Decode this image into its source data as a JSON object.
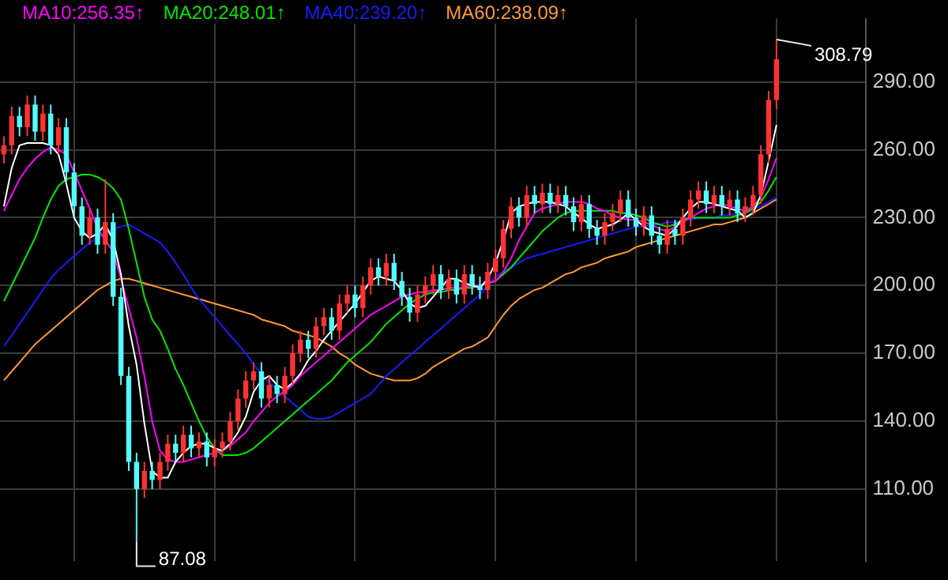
{
  "chart_data": {
    "type": "candlestick",
    "categories": [
      null,
      null,
      null,
      null,
      null,
      null,
      null,
      null,
      null,
      null,
      null,
      null,
      null,
      null,
      null,
      null,
      null,
      null,
      null,
      null,
      null,
      null,
      null,
      null,
      null,
      null,
      null,
      null,
      null,
      null,
      null,
      null,
      null,
      null,
      null,
      null,
      null,
      null,
      null,
      null,
      null,
      null,
      null,
      null,
      null,
      null,
      null,
      null,
      null,
      null,
      null,
      null,
      null,
      null,
      null,
      null,
      null,
      null,
      null,
      null,
      null,
      null,
      null,
      null,
      null,
      null,
      null,
      null,
      null,
      null,
      null,
      null,
      null,
      null,
      null,
      null,
      null,
      null,
      null,
      null,
      null,
      null,
      null,
      null,
      null,
      null,
      null,
      null,
      null,
      null,
      null,
      null,
      null,
      null,
      null,
      null,
      null,
      null,
      null,
      null
    ],
    "ohlc": [
      [
        258,
        266,
        254,
        262
      ],
      [
        262,
        279,
        258,
        275
      ],
      [
        275,
        279,
        266,
        270
      ],
      [
        270,
        284,
        266,
        280
      ],
      [
        280,
        284,
        264,
        268
      ],
      [
        268,
        280,
        264,
        276
      ],
      [
        276,
        280,
        258,
        262
      ],
      [
        262,
        274,
        258,
        270
      ],
      [
        270,
        274,
        246,
        250
      ],
      [
        250,
        254,
        231,
        235
      ],
      [
        235,
        239,
        218,
        222
      ],
      [
        222,
        234,
        218,
        230
      ],
      [
        230,
        234,
        214,
        218
      ],
      [
        218,
        247,
        214,
        228
      ],
      [
        228,
        232,
        191,
        195
      ],
      [
        195,
        199,
        156,
        160
      ],
      [
        160,
        164,
        118,
        122
      ],
      [
        122,
        126,
        87.08,
        110
      ],
      [
        110,
        122,
        106,
        118
      ],
      [
        118,
        122,
        110,
        114
      ],
      [
        114,
        126,
        110,
        122
      ],
      [
        122,
        134,
        118,
        130
      ],
      [
        130,
        134,
        122,
        126
      ],
      [
        126,
        138,
        122,
        134
      ],
      [
        134,
        138,
        124,
        128
      ],
      [
        128,
        135,
        124,
        131
      ],
      [
        131,
        135,
        120,
        124
      ],
      [
        124,
        132,
        120,
        128
      ],
      [
        128,
        135,
        124,
        131
      ],
      [
        131,
        144,
        127,
        140
      ],
      [
        140,
        154,
        136,
        150
      ],
      [
        150,
        162,
        146,
        158
      ],
      [
        158,
        166,
        154,
        162
      ],
      [
        162,
        166,
        146,
        150
      ],
      [
        150,
        160,
        146,
        156
      ],
      [
        156,
        160,
        148,
        152
      ],
      [
        152,
        164,
        148,
        160
      ],
      [
        160,
        174,
        156,
        170
      ],
      [
        170,
        180,
        166,
        176
      ],
      [
        176,
        180,
        168,
        172
      ],
      [
        172,
        186,
        168,
        182
      ],
      [
        182,
        190,
        178,
        186
      ],
      [
        186,
        190,
        176,
        180
      ],
      [
        180,
        196,
        176,
        192
      ],
      [
        192,
        200,
        188,
        196
      ],
      [
        196,
        200,
        186,
        190
      ],
      [
        190,
        204,
        186,
        200
      ],
      [
        200,
        212,
        196,
        208
      ],
      [
        208,
        212,
        200,
        204
      ],
      [
        204,
        214,
        200,
        210
      ],
      [
        210,
        214,
        198,
        202
      ],
      [
        202,
        206,
        191,
        195
      ],
      [
        195,
        199,
        184,
        188
      ],
      [
        188,
        200,
        184,
        196
      ],
      [
        196,
        204,
        192,
        200
      ],
      [
        200,
        209,
        196,
        205
      ],
      [
        205,
        209,
        194,
        198
      ],
      [
        198,
        207,
        194,
        203
      ],
      [
        203,
        207,
        192,
        196
      ],
      [
        196,
        209,
        192,
        205
      ],
      [
        205,
        209,
        196,
        200
      ],
      [
        200,
        204,
        194,
        198
      ],
      [
        198,
        210,
        194,
        206
      ],
      [
        206,
        216,
        202,
        212
      ],
      [
        212,
        229,
        208,
        225
      ],
      [
        225,
        239,
        221,
        235
      ],
      [
        235,
        239,
        226,
        230
      ],
      [
        230,
        244,
        226,
        240
      ],
      [
        240,
        244,
        232,
        236
      ],
      [
        236,
        245,
        232,
        241
      ],
      [
        241,
        245,
        232,
        236
      ],
      [
        236,
        244,
        232,
        240
      ],
      [
        240,
        244,
        231,
        235
      ],
      [
        235,
        239,
        224,
        228
      ],
      [
        228,
        240,
        224,
        236
      ],
      [
        236,
        240,
        221,
        225
      ],
      [
        225,
        229,
        218,
        222
      ],
      [
        222,
        232,
        218,
        228
      ],
      [
        228,
        236,
        224,
        232
      ],
      [
        232,
        242,
        228,
        238
      ],
      [
        238,
        242,
        226,
        230
      ],
      [
        230,
        234,
        222,
        226
      ],
      [
        226,
        235,
        222,
        231
      ],
      [
        231,
        235,
        218,
        222
      ],
      [
        222,
        226,
        214,
        218
      ],
      [
        218,
        229,
        214,
        225
      ],
      [
        225,
        229,
        218,
        222
      ],
      [
        222,
        234,
        218,
        230
      ],
      [
        230,
        242,
        226,
        238
      ],
      [
        238,
        246,
        234,
        242
      ],
      [
        242,
        246,
        232,
        236
      ],
      [
        236,
        244,
        232,
        240
      ],
      [
        240,
        244,
        231,
        235
      ],
      [
        235,
        242,
        231,
        238
      ],
      [
        238,
        242,
        228,
        232
      ],
      [
        232,
        239,
        228,
        235
      ],
      [
        235,
        244,
        231,
        240
      ],
      [
        240,
        262,
        236,
        258
      ],
      [
        258,
        286,
        254,
        282
      ],
      [
        282,
        308.79,
        278,
        300
      ]
    ],
    "series": [
      {
        "type": "line",
        "color": "#ffffff",
        "values": [
          235,
          252,
          262,
          263,
          263,
          263,
          262,
          258,
          245,
          230,
          224,
          221,
          223,
          227,
          220,
          205,
          182,
          165,
          139,
          118,
          115,
          115,
          122,
          126,
          129,
          130,
          130,
          128,
          127,
          130,
          135,
          142,
          153,
          158,
          160,
          156,
          154,
          157,
          161,
          167,
          171,
          176,
          180,
          184,
          188,
          192,
          197,
          202,
          204,
          203,
          202,
          198,
          192,
          190,
          191,
          195,
          199,
          203,
          203,
          201,
          200,
          199,
          203,
          210,
          220,
          232,
          235,
          236,
          237,
          237,
          237,
          236,
          235,
          232,
          230,
          227,
          225,
          226,
          227,
          229,
          232,
          229,
          226,
          224,
          223,
          222,
          225,
          230,
          234,
          237,
          237,
          236,
          235,
          234,
          233,
          230,
          232,
          240,
          255,
          271
        ]
      },
      {
        "type": "line",
        "name": "MA10:256.35↑",
        "color": "#ff00ff",
        "values": [
          233,
          240,
          247,
          252,
          256,
          259,
          261,
          260,
          258,
          250,
          242,
          234,
          225,
          220,
          215,
          203,
          190,
          177,
          160,
          140,
          127,
          123,
          122,
          122,
          123,
          124,
          125,
          126,
          127,
          129,
          132,
          135,
          140,
          144,
          148,
          151,
          153,
          156,
          160,
          163,
          166,
          169,
          172,
          175,
          178,
          181,
          184,
          187,
          189,
          191,
          193,
          195,
          196,
          197,
          197,
          198,
          198,
          199,
          199,
          199,
          200,
          200,
          201,
          202,
          206,
          212,
          220,
          226,
          232,
          234,
          235,
          236,
          237,
          237,
          237,
          236,
          234,
          233,
          231,
          230,
          229,
          229,
          228,
          227,
          225,
          224,
          226,
          228,
          230,
          232,
          234,
          235,
          236,
          235,
          234,
          233,
          235,
          239,
          247,
          256.35
        ]
      },
      {
        "type": "line",
        "name": "MA20:248.01↑",
        "color": "#00e600",
        "values": [
          193,
          200,
          207,
          214,
          221,
          230,
          238,
          244,
          247,
          248,
          249,
          249,
          248,
          246,
          243,
          238,
          225,
          210,
          195,
          185,
          180,
          172,
          163,
          156,
          148,
          140,
          133,
          128,
          125,
          125,
          125,
          126,
          128,
          131,
          134,
          137,
          140,
          143,
          146,
          149,
          152,
          155,
          158,
          162,
          166,
          169,
          172,
          175,
          179,
          183,
          186,
          189,
          192,
          194,
          196,
          197,
          197,
          198,
          198,
          199,
          199,
          200,
          201,
          202,
          205,
          208,
          212,
          216,
          220,
          224,
          227,
          230,
          232,
          233,
          233,
          233,
          233,
          233,
          233,
          232,
          232,
          231,
          230,
          228,
          227,
          226,
          227,
          229,
          230,
          230,
          230,
          230,
          230,
          230,
          231,
          232,
          234,
          237,
          242,
          248.01
        ]
      },
      {
        "type": "line",
        "name": "MA40:239.20↑",
        "color": "#1a1aff",
        "values": [
          173,
          178,
          183,
          188,
          193,
          198,
          203,
          207,
          210,
          213,
          216,
          219,
          221,
          223,
          225,
          226,
          227,
          225,
          223,
          221,
          219,
          215,
          210,
          205,
          199,
          194,
          190,
          186,
          182,
          178,
          174,
          170,
          165,
          161,
          157,
          154,
          151,
          148,
          145,
          142,
          141,
          141,
          142,
          144,
          146,
          148,
          150,
          152,
          156,
          160,
          163,
          166,
          169,
          172,
          175,
          178,
          181,
          184,
          187,
          190,
          193,
          196,
          200,
          204,
          206,
          208,
          210,
          212,
          213,
          214,
          215,
          216,
          217,
          218,
          219,
          220,
          221,
          222,
          223,
          224,
          225,
          226,
          226,
          227,
          227,
          228,
          228,
          229,
          229,
          230,
          230,
          230,
          231,
          231,
          232,
          233,
          234,
          235,
          237,
          239.2
        ]
      },
      {
        "type": "line",
        "name": "MA60:238.09↑",
        "color": "#ff9933",
        "values": [
          158,
          162,
          166,
          170,
          174,
          177,
          180,
          183,
          186,
          189,
          192,
          195,
          198,
          200,
          202,
          203,
          203,
          202,
          201,
          200,
          199,
          198,
          197,
          196,
          195,
          194,
          193,
          192,
          191,
          190,
          189,
          188,
          187,
          185,
          184,
          183,
          182,
          180,
          179,
          178,
          177,
          175,
          173,
          170,
          168,
          165,
          163,
          161,
          160,
          159,
          158,
          158,
          158,
          159,
          161,
          164,
          166,
          168,
          170,
          172,
          173,
          175,
          177,
          182,
          187,
          191,
          194,
          196,
          198,
          199,
          201,
          203,
          205,
          206,
          208,
          209,
          210,
          212,
          213,
          214,
          215,
          217,
          218,
          219,
          220,
          221,
          222,
          223,
          224,
          225,
          226,
          227,
          227,
          228,
          229,
          230,
          232,
          234,
          236,
          238.09
        ]
      }
    ],
    "ylim": [
      78,
      318
    ],
    "yticks": [
      {
        "value": 110,
        "label": "110.00"
      },
      {
        "value": 140,
        "label": "140.00"
      },
      {
        "value": 170,
        "label": "170.00"
      },
      {
        "value": 200,
        "label": "200.00"
      },
      {
        "value": 230,
        "label": "230.00"
      },
      {
        "value": 260,
        "label": "260.00"
      },
      {
        "value": 290,
        "label": "290.00"
      }
    ],
    "annotations": [
      "308.79",
      "87.08"
    ],
    "grid": true,
    "legend": "top left",
    "marker": "none"
  }
}
